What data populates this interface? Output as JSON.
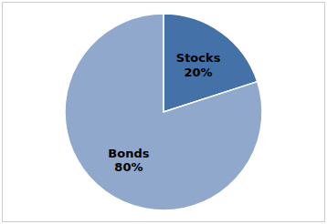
{
  "chart_data": {
    "type": "pie",
    "categories": [
      "Stocks",
      "Bonds"
    ],
    "values": [
      20,
      80
    ],
    "value_labels": [
      "20%",
      "80%"
    ],
    "colors": [
      "#4472A8",
      "#8FA8CC"
    ],
    "data_labels": true
  }
}
